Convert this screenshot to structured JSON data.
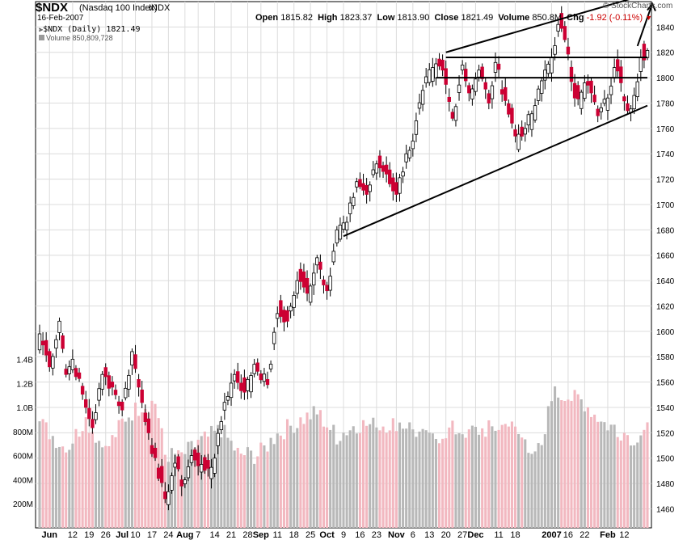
{
  "header": {
    "symbol": "$NDX",
    "description": "(Nasdaq 100 Index)",
    "exchange": "INDX",
    "date": "16-Feb-2007",
    "brand": "© StockCharts.com",
    "open_label": "Open",
    "open_value": "1815.82",
    "high_label": "High",
    "high_value": "1823.37",
    "low_label": "Low",
    "low_value": "1813.90",
    "close_label": "Close",
    "close_value": "1821.49",
    "volume_label": "Volume",
    "volume_value": "850.8M",
    "chg_label": "Chg",
    "chg_value": "-1.92 (-0.11%)"
  },
  "legend": {
    "price": "$NDX (Daily) 1821.49",
    "volume": "Volume 850,809,728"
  },
  "colors": {
    "up_candle": "#ffffff",
    "down_candle": "#cc0033",
    "volume_up": "#b8b8b8",
    "volume_down": "#f2b8c0",
    "grid": "#dcdcdc",
    "trendline": "#000000"
  },
  "chart_data": {
    "type": "candlestick",
    "price_axis": {
      "min": 1445,
      "max": 1860,
      "ticks": [
        1460,
        1480,
        1500,
        1520,
        1540,
        1560,
        1580,
        1600,
        1620,
        1640,
        1660,
        1680,
        1700,
        1720,
        1740,
        1760,
        1780,
        1800,
        1820,
        1840
      ]
    },
    "volume_axis": {
      "min": 0,
      "max": 1700,
      "unit": "M",
      "ticks": [
        200,
        400,
        600,
        800,
        1000,
        1200,
        1400
      ],
      "tick_labels": [
        "200M",
        "400M",
        "600M",
        "800M",
        "1.0B",
        "1.2B",
        "1.4B"
      ]
    },
    "x_axis": {
      "tick_labels": [
        "Jun",
        "12",
        "19",
        "26",
        "Jul",
        "10",
        "17",
        "24",
        "Aug",
        "7",
        "14",
        "21",
        "28",
        "Sep",
        "11",
        "18",
        "25",
        "Oct",
        "9",
        "16",
        "23",
        "Nov",
        "6",
        "13",
        "20",
        "27",
        "Dec",
        "11",
        "18",
        "2007",
        "16",
        "22",
        "Feb",
        "12"
      ],
      "tick_bar_index": [
        3,
        10,
        15,
        20,
        25,
        29,
        34,
        39,
        44,
        48,
        53,
        58,
        63,
        67,
        72,
        77,
        82,
        87,
        92,
        97,
        102,
        108,
        113,
        118,
        123,
        128,
        132,
        139,
        144,
        155,
        160,
        165,
        172,
        177
      ]
    },
    "anchors": [
      [
        0,
        1598,
        "up"
      ],
      [
        3,
        1572,
        "down"
      ],
      [
        6,
        1608,
        "up"
      ],
      [
        8,
        1566,
        "down"
      ],
      [
        10,
        1578,
        "up"
      ],
      [
        14,
        1540,
        "down"
      ],
      [
        16,
        1524,
        "down"
      ],
      [
        19,
        1566,
        "up"
      ],
      [
        22,
        1556,
        "down"
      ],
      [
        25,
        1538,
        "down"
      ],
      [
        28,
        1584,
        "up"
      ],
      [
        30,
        1556,
        "down"
      ],
      [
        33,
        1520,
        "down"
      ],
      [
        36,
        1484,
        "down"
      ],
      [
        38,
        1468,
        "down"
      ],
      [
        41,
        1496,
        "up"
      ],
      [
        43,
        1478,
        "down"
      ],
      [
        46,
        1502,
        "up"
      ],
      [
        48,
        1494,
        "down"
      ],
      [
        51,
        1492,
        "down"
      ],
      [
        53,
        1500,
        "up"
      ],
      [
        56,
        1544,
        "up"
      ],
      [
        59,
        1566,
        "up"
      ],
      [
        62,
        1552,
        "down"
      ],
      [
        65,
        1574,
        "up"
      ],
      [
        69,
        1558,
        "down"
      ],
      [
        72,
        1614,
        "up"
      ],
      [
        75,
        1608,
        "down"
      ],
      [
        78,
        1640,
        "up"
      ],
      [
        81,
        1630,
        "down"
      ],
      [
        84,
        1658,
        "up"
      ],
      [
        87,
        1632,
        "down"
      ],
      [
        90,
        1680,
        "up"
      ],
      [
        93,
        1686,
        "up"
      ],
      [
        96,
        1718,
        "up"
      ],
      [
        99,
        1708,
        "down"
      ],
      [
        102,
        1732,
        "up"
      ],
      [
        105,
        1724,
        "down"
      ],
      [
        108,
        1708,
        "down"
      ],
      [
        111,
        1740,
        "up"
      ],
      [
        113,
        1750,
        "up"
      ],
      [
        116,
        1790,
        "up"
      ],
      [
        119,
        1808,
        "up"
      ],
      [
        122,
        1806,
        "down"
      ],
      [
        125,
        1768,
        "down"
      ],
      [
        128,
        1810,
        "up"
      ],
      [
        130,
        1788,
        "down"
      ],
      [
        133,
        1806,
        "up"
      ],
      [
        136,
        1780,
        "down"
      ],
      [
        138,
        1812,
        "up"
      ],
      [
        141,
        1782,
        "down"
      ],
      [
        144,
        1754,
        "down"
      ],
      [
        147,
        1760,
        "up"
      ],
      [
        150,
        1778,
        "up"
      ],
      [
        153,
        1806,
        "up"
      ],
      [
        155,
        1816,
        "up"
      ],
      [
        157,
        1842,
        "up"
      ],
      [
        159,
        1830,
        "down"
      ],
      [
        162,
        1784,
        "down"
      ],
      [
        165,
        1796,
        "up"
      ],
      [
        167,
        1788,
        "down"
      ],
      [
        169,
        1770,
        "down"
      ],
      [
        172,
        1784,
        "up"
      ],
      [
        174,
        1808,
        "up"
      ],
      [
        176,
        1796,
        "down"
      ],
      [
        178,
        1774,
        "down"
      ],
      [
        180,
        1786,
        "up"
      ],
      [
        182,
        1816,
        "up"
      ],
      [
        184,
        1821.49,
        "down"
      ]
    ],
    "last_bar": {
      "open": 1815.82,
      "high": 1823.37,
      "low": 1813.9,
      "close": 1821.49
    },
    "volume_profile": [
      [
        0,
        880
      ],
      [
        8,
        650
      ],
      [
        14,
        900
      ],
      [
        20,
        640
      ],
      [
        26,
        920
      ],
      [
        30,
        1000
      ],
      [
        35,
        1050
      ],
      [
        38,
        620
      ],
      [
        42,
        580
      ],
      [
        48,
        700
      ],
      [
        55,
        820
      ],
      [
        60,
        620
      ],
      [
        66,
        600
      ],
      [
        72,
        780
      ],
      [
        78,
        880
      ],
      [
        84,
        960
      ],
      [
        90,
        760
      ],
      [
        96,
        860
      ],
      [
        102,
        850
      ],
      [
        108,
        880
      ],
      [
        112,
        840
      ],
      [
        118,
        720
      ],
      [
        124,
        820
      ],
      [
        130,
        800
      ],
      [
        136,
        820
      ],
      [
        142,
        860
      ],
      [
        148,
        690
      ],
      [
        152,
        620
      ],
      [
        155,
        1120
      ],
      [
        160,
        1090
      ],
      [
        165,
        1040
      ],
      [
        170,
        880
      ],
      [
        175,
        820
      ],
      [
        180,
        750
      ],
      [
        184,
        850
      ]
    ],
    "trendlines": [
      {
        "name": "upper channel",
        "from": [
          123,
          1820
        ],
        "to": [
          184,
          1866
        ]
      },
      {
        "name": "lower channel",
        "from": [
          92,
          1675
        ],
        "to": [
          184,
          1778
        ]
      },
      {
        "name": "resistance high",
        "from": [
          123,
          1816
        ],
        "to": [
          184,
          1816
        ]
      },
      {
        "name": "resistance",
        "from": [
          120,
          1800
        ],
        "to": [
          184,
          1800
        ]
      }
    ],
    "arrow": {
      "from": [
        181,
        1825
      ],
      "to": [
        184,
        1852
      ]
    }
  }
}
